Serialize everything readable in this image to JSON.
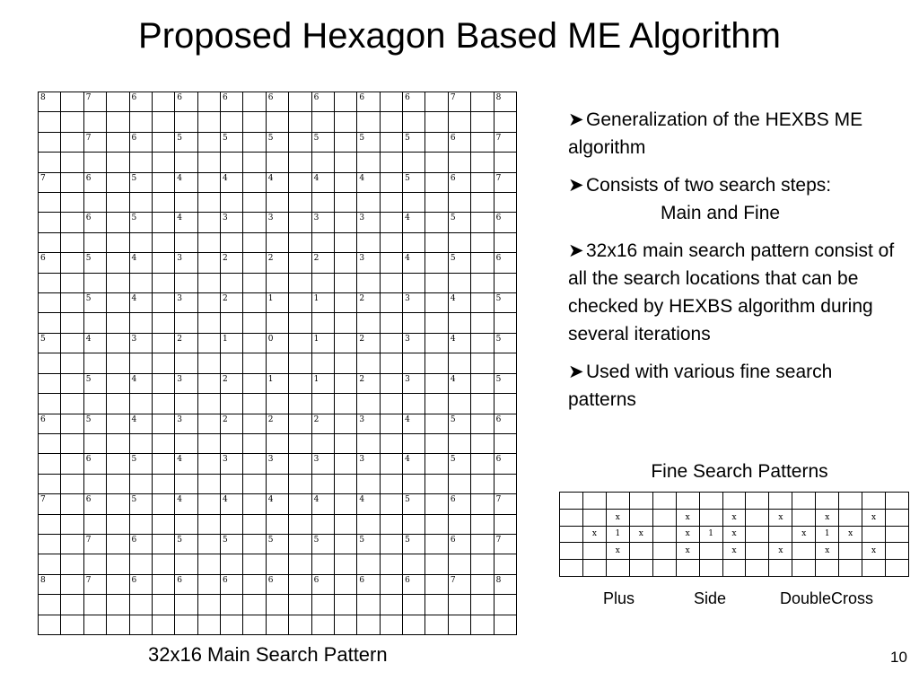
{
  "slide": {
    "title": "Proposed Hexagon Based ME Algorithm",
    "page_number": "10"
  },
  "main_grid": {
    "caption": "32x16 Main Search Pattern",
    "rows": [
      [
        "8",
        "7",
        "6",
        "6",
        "6",
        "6",
        "6",
        "6",
        "6",
        "7",
        "8"
      ],
      [],
      [
        "",
        "7",
        "6",
        "5",
        "5",
        "5",
        "5",
        "5",
        "5",
        "6",
        "7"
      ],
      [],
      [
        "7",
        "6",
        "5",
        "4",
        "4",
        "4",
        "4",
        "4",
        "5",
        "6",
        "7"
      ],
      [],
      [
        "",
        "6",
        "5",
        "4",
        "3",
        "3",
        "3",
        "3",
        "4",
        "5",
        "6"
      ],
      [],
      [
        "6",
        "5",
        "4",
        "3",
        "2",
        "2",
        "2",
        "3",
        "4",
        "5",
        "6"
      ],
      [],
      [
        "",
        "5",
        "4",
        "3",
        "2",
        "1",
        "1",
        "2",
        "3",
        "4",
        "5"
      ],
      [],
      [
        "5",
        "4",
        "3",
        "2",
        "1",
        "0",
        "1",
        "2",
        "3",
        "4",
        "5"
      ],
      [],
      [
        "",
        "5",
        "4",
        "3",
        "2",
        "1",
        "1",
        "2",
        "3",
        "4",
        "5"
      ],
      [],
      [
        "6",
        "5",
        "4",
        "3",
        "2",
        "2",
        "2",
        "3",
        "4",
        "5",
        "6"
      ],
      [],
      [
        "",
        "6",
        "5",
        "4",
        "3",
        "3",
        "3",
        "3",
        "4",
        "5",
        "6"
      ],
      [],
      [
        "7",
        "6",
        "5",
        "4",
        "4",
        "4",
        "4",
        "4",
        "5",
        "6",
        "7"
      ],
      [],
      [
        "",
        "7",
        "6",
        "5",
        "5",
        "5",
        "5",
        "5",
        "5",
        "6",
        "7"
      ],
      [],
      [
        "8",
        "7",
        "6",
        "6",
        "6",
        "6",
        "6",
        "6",
        "6",
        "7",
        "8"
      ],
      [],
      []
    ]
  },
  "bullets": [
    {
      "icon": "arrow-bullet-icon",
      "text": "Generalization of the HEXBS ME algorithm"
    },
    {
      "icon": "arrow-bullet-icon",
      "text": "Consists of two search steps:",
      "subtext": "Main and Fine"
    },
    {
      "icon": "arrow-bullet-icon",
      "text": "32x16 main search pattern consist of all the search locations that can be checked by HEXBS algorithm during several iterations"
    },
    {
      "icon": "arrow-bullet-icon",
      "text": "Used with various fine search patterns"
    }
  ],
  "fine_patterns": {
    "title": "Fine Search Patterns",
    "grid": [
      [
        "",
        "",
        "",
        "",
        "",
        "",
        "",
        "",
        "",
        "",
        "",
        "",
        "",
        "",
        ""
      ],
      [
        "",
        "",
        "x",
        "",
        "",
        "x",
        "",
        "x",
        "",
        "x",
        "",
        "x",
        "",
        "x",
        ""
      ],
      [
        "",
        "x",
        "1",
        "x",
        "",
        "x",
        "1",
        "x",
        "",
        "",
        "x",
        "1",
        "x",
        "",
        ""
      ],
      [
        "",
        "",
        "x",
        "",
        "",
        "x",
        "",
        "x",
        "",
        "x",
        "",
        "x",
        "",
        "x",
        ""
      ],
      [
        "",
        "",
        "",
        "",
        "",
        "",
        "",
        "",
        "",
        "",
        "",
        "",
        "",
        "",
        ""
      ]
    ],
    "labels": [
      "Plus",
      "Side",
      "DoubleCross"
    ]
  }
}
